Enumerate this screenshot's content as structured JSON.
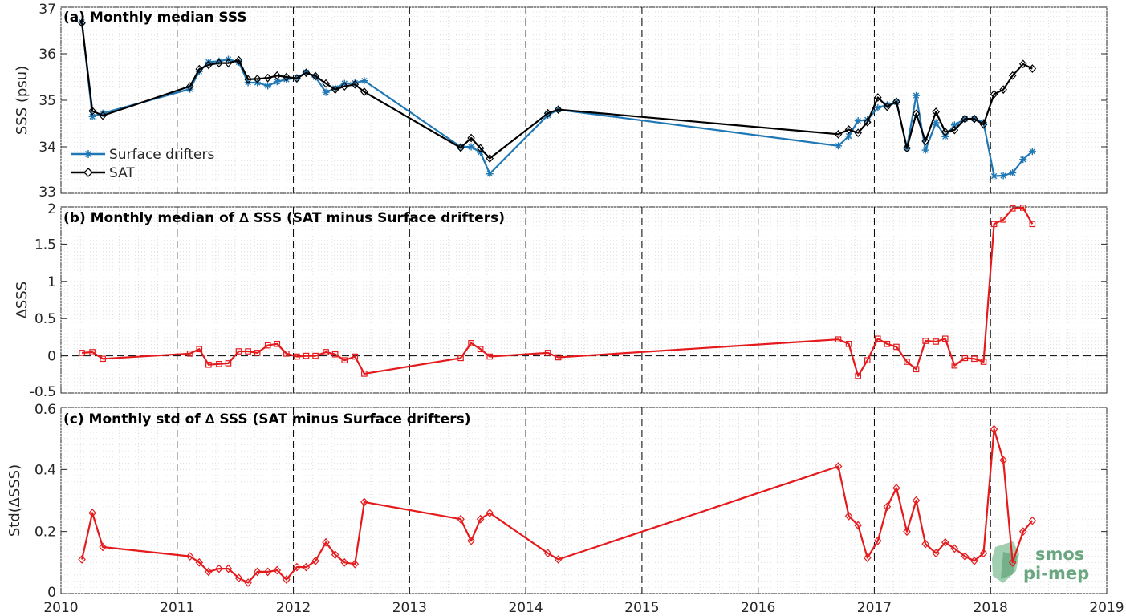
{
  "x_ticks": [
    "2010",
    "2011",
    "2012",
    "2013",
    "2014",
    "2015",
    "2016",
    "2017",
    "2018",
    "2019"
  ],
  "logo": {
    "line1": "smos",
    "line2": "pi-mep"
  },
  "colors": {
    "drifters": "#1f77b4",
    "sat": "#000000",
    "delta": "#e41a1c",
    "grid": "#d9d9d9",
    "dashed": "#000000"
  },
  "chart_data": [
    {
      "type": "line",
      "panel": "a",
      "title": "(a) Monthly median SSS",
      "ylabel": "SSS (psu)",
      "xlim": [
        2010,
        2019
      ],
      "ylim": [
        33,
        37
      ],
      "yticks": [
        33,
        34,
        35,
        36,
        37
      ],
      "year_dividers": [
        2011,
        2012,
        2013,
        2014,
        2015,
        2016,
        2017,
        2018
      ],
      "legend": "left",
      "series": [
        {
          "name": "Surface drifters",
          "color": "#1f77b4",
          "marker": "star",
          "points": [
            [
              2010.18,
              36.68
            ],
            [
              2010.27,
              34.65
            ],
            [
              2010.36,
              34.72
            ],
            [
              2011.11,
              35.24
            ],
            [
              2011.19,
              35.62
            ],
            [
              2011.27,
              35.82
            ],
            [
              2011.36,
              35.84
            ],
            [
              2011.44,
              35.88
            ],
            [
              2011.53,
              35.82
            ],
            [
              2011.61,
              35.38
            ],
            [
              2011.69,
              35.38
            ],
            [
              2011.78,
              35.31
            ],
            [
              2011.86,
              35.4
            ],
            [
              2011.94,
              35.45
            ],
            [
              2012.03,
              35.48
            ],
            [
              2012.11,
              35.6
            ],
            [
              2012.19,
              35.5
            ],
            [
              2012.28,
              35.17
            ],
            [
              2012.36,
              35.26
            ],
            [
              2012.44,
              35.36
            ],
            [
              2012.53,
              35.37
            ],
            [
              2012.61,
              35.42
            ],
            [
              2013.44,
              34.0
            ],
            [
              2013.53,
              34.0
            ],
            [
              2013.61,
              33.88
            ],
            [
              2013.69,
              33.42
            ],
            [
              2014.19,
              34.68
            ],
            [
              2014.28,
              34.8
            ],
            [
              2016.69,
              34.02
            ],
            [
              2016.78,
              34.23
            ],
            [
              2016.86,
              34.56
            ],
            [
              2016.94,
              34.58
            ],
            [
              2017.03,
              34.84
            ],
            [
              2017.11,
              34.9
            ],
            [
              2017.19,
              34.96
            ],
            [
              2017.28,
              33.98
            ],
            [
              2017.36,
              35.1
            ],
            [
              2017.44,
              33.93
            ],
            [
              2017.53,
              34.52
            ],
            [
              2017.61,
              34.22
            ],
            [
              2017.69,
              34.47
            ],
            [
              2017.78,
              34.6
            ],
            [
              2017.86,
              34.61
            ],
            [
              2017.94,
              34.52
            ],
            [
              2018.03,
              33.37
            ],
            [
              2018.11,
              33.38
            ],
            [
              2018.19,
              33.44
            ],
            [
              2018.28,
              33.73
            ],
            [
              2018.36,
              33.9
            ]
          ]
        },
        {
          "name": "SAT",
          "color": "#000000",
          "marker": "diamond",
          "points": [
            [
              2010.18,
              36.66
            ],
            [
              2010.27,
              34.77
            ],
            [
              2010.36,
              34.67
            ],
            [
              2011.11,
              35.3
            ],
            [
              2011.19,
              35.67
            ],
            [
              2011.27,
              35.76
            ],
            [
              2011.36,
              35.8
            ],
            [
              2011.44,
              35.8
            ],
            [
              2011.53,
              35.86
            ],
            [
              2011.61,
              35.45
            ],
            [
              2011.69,
              35.46
            ],
            [
              2011.78,
              35.48
            ],
            [
              2011.86,
              35.53
            ],
            [
              2011.94,
              35.5
            ],
            [
              2012.03,
              35.47
            ],
            [
              2012.11,
              35.59
            ],
            [
              2012.19,
              35.52
            ],
            [
              2012.28,
              35.36
            ],
            [
              2012.36,
              35.23
            ],
            [
              2012.44,
              35.3
            ],
            [
              2012.53,
              35.34
            ],
            [
              2012.61,
              35.18
            ],
            [
              2013.44,
              33.98
            ],
            [
              2013.53,
              34.19
            ],
            [
              2013.61,
              33.97
            ],
            [
              2013.69,
              33.75
            ],
            [
              2014.19,
              34.72
            ],
            [
              2014.28,
              34.8
            ],
            [
              2016.69,
              34.27
            ],
            [
              2016.78,
              34.37
            ],
            [
              2016.86,
              34.3
            ],
            [
              2016.94,
              34.53
            ],
            [
              2017.03,
              35.06
            ],
            [
              2017.11,
              34.86
            ],
            [
              2017.19,
              34.97
            ],
            [
              2017.28,
              33.97
            ],
            [
              2017.36,
              34.71
            ],
            [
              2017.44,
              34.12
            ],
            [
              2017.53,
              34.75
            ],
            [
              2017.61,
              34.32
            ],
            [
              2017.69,
              34.36
            ],
            [
              2017.78,
              34.6
            ],
            [
              2017.86,
              34.6
            ],
            [
              2017.94,
              34.48
            ],
            [
              2018.03,
              35.13
            ],
            [
              2018.11,
              35.23
            ],
            [
              2018.19,
              35.53
            ],
            [
              2018.28,
              35.78
            ],
            [
              2018.36,
              35.68
            ]
          ]
        }
      ]
    },
    {
      "type": "line",
      "panel": "b",
      "title": "(b) Monthly median of ∆ SSS (SAT minus Surface drifters)",
      "ylabel": "∆SSS",
      "xlim": [
        2010,
        2019
      ],
      "ylim": [
        -0.5,
        2
      ],
      "yticks": [
        -0.5,
        0,
        0.5,
        1,
        1.5,
        2
      ],
      "year_dividers": [
        2011,
        2012,
        2013,
        2014,
        2015,
        2016,
        2017,
        2018
      ],
      "zero_line": true,
      "series": [
        {
          "color": "#e41a1c",
          "marker": "square",
          "points": [
            [
              2010.18,
              0.04
            ],
            [
              2010.27,
              0.05
            ],
            [
              2010.36,
              -0.04
            ],
            [
              2011.11,
              0.03
            ],
            [
              2011.19,
              0.09
            ],
            [
              2011.27,
              -0.12
            ],
            [
              2011.36,
              -0.11
            ],
            [
              2011.44,
              -0.1
            ],
            [
              2011.53,
              0.06
            ],
            [
              2011.61,
              0.06
            ],
            [
              2011.69,
              0.04
            ],
            [
              2011.78,
              0.14
            ],
            [
              2011.86,
              0.16
            ],
            [
              2011.94,
              0.03
            ],
            [
              2012.03,
              -0.01
            ],
            [
              2012.11,
              0.0
            ],
            [
              2012.19,
              0.0
            ],
            [
              2012.28,
              0.05
            ],
            [
              2012.36,
              0.02
            ],
            [
              2012.44,
              -0.06
            ],
            [
              2012.53,
              -0.01
            ],
            [
              2012.61,
              -0.24
            ],
            [
              2013.44,
              -0.03
            ],
            [
              2013.53,
              0.17
            ],
            [
              2013.61,
              0.09
            ],
            [
              2013.69,
              -0.01
            ],
            [
              2014.19,
              0.04
            ],
            [
              2014.28,
              -0.02
            ],
            [
              2016.69,
              0.22
            ],
            [
              2016.78,
              0.16
            ],
            [
              2016.86,
              -0.27
            ],
            [
              2016.94,
              -0.06
            ],
            [
              2017.03,
              0.23
            ],
            [
              2017.11,
              0.16
            ],
            [
              2017.19,
              0.12
            ],
            [
              2017.28,
              -0.08
            ],
            [
              2017.36,
              -0.18
            ],
            [
              2017.44,
              0.2
            ],
            [
              2017.53,
              0.19
            ],
            [
              2017.61,
              0.23
            ],
            [
              2017.69,
              -0.13
            ],
            [
              2017.78,
              -0.03
            ],
            [
              2017.86,
              -0.04
            ],
            [
              2017.94,
              -0.08
            ],
            [
              2018.03,
              1.77
            ],
            [
              2018.11,
              1.83
            ],
            [
              2018.19,
              1.98
            ],
            [
              2018.28,
              1.99
            ],
            [
              2018.36,
              1.77
            ]
          ]
        }
      ]
    },
    {
      "type": "line",
      "panel": "c",
      "title": "(c) Monthly std of ∆ SSS (SAT minus Surface drifters)",
      "ylabel": "Std(∆SSS)",
      "xlim": [
        2010,
        2019
      ],
      "ylim": [
        0,
        0.6
      ],
      "yticks": [
        0,
        0.2,
        0.4,
        0.6
      ],
      "year_dividers": [
        2011,
        2012,
        2013,
        2014,
        2015,
        2016,
        2017,
        2018
      ],
      "series": [
        {
          "color": "#e41a1c",
          "marker": "diamond",
          "points": [
            [
              2010.18,
              0.11
            ],
            [
              2010.27,
              0.26
            ],
            [
              2010.36,
              0.15
            ],
            [
              2011.11,
              0.12
            ],
            [
              2011.19,
              0.1
            ],
            [
              2011.27,
              0.07
            ],
            [
              2011.36,
              0.08
            ],
            [
              2011.44,
              0.08
            ],
            [
              2011.53,
              0.05
            ],
            [
              2011.61,
              0.035
            ],
            [
              2011.69,
              0.07
            ],
            [
              2011.78,
              0.07
            ],
            [
              2011.86,
              0.075
            ],
            [
              2011.94,
              0.045
            ],
            [
              2012.03,
              0.085
            ],
            [
              2012.11,
              0.085
            ],
            [
              2012.19,
              0.105
            ],
            [
              2012.28,
              0.165
            ],
            [
              2012.36,
              0.125
            ],
            [
              2012.44,
              0.1
            ],
            [
              2012.53,
              0.095
            ],
            [
              2012.61,
              0.295
            ],
            [
              2013.44,
              0.24
            ],
            [
              2013.53,
              0.17
            ],
            [
              2013.61,
              0.24
            ],
            [
              2013.69,
              0.26
            ],
            [
              2014.19,
              0.13
            ],
            [
              2014.28,
              0.11
            ],
            [
              2016.69,
              0.41
            ],
            [
              2016.78,
              0.25
            ],
            [
              2016.86,
              0.22
            ],
            [
              2016.94,
              0.115
            ],
            [
              2017.03,
              0.17
            ],
            [
              2017.11,
              0.28
            ],
            [
              2017.19,
              0.34
            ],
            [
              2017.28,
              0.2
            ],
            [
              2017.36,
              0.3
            ],
            [
              2017.44,
              0.16
            ],
            [
              2017.53,
              0.13
            ],
            [
              2017.61,
              0.165
            ],
            [
              2017.69,
              0.145
            ],
            [
              2017.78,
              0.12
            ],
            [
              2017.86,
              0.105
            ],
            [
              2017.94,
              0.13
            ],
            [
              2018.03,
              0.53
            ],
            [
              2018.11,
              0.43
            ],
            [
              2018.19,
              0.1
            ],
            [
              2018.28,
              0.2
            ],
            [
              2018.36,
              0.235
            ]
          ]
        }
      ]
    }
  ]
}
